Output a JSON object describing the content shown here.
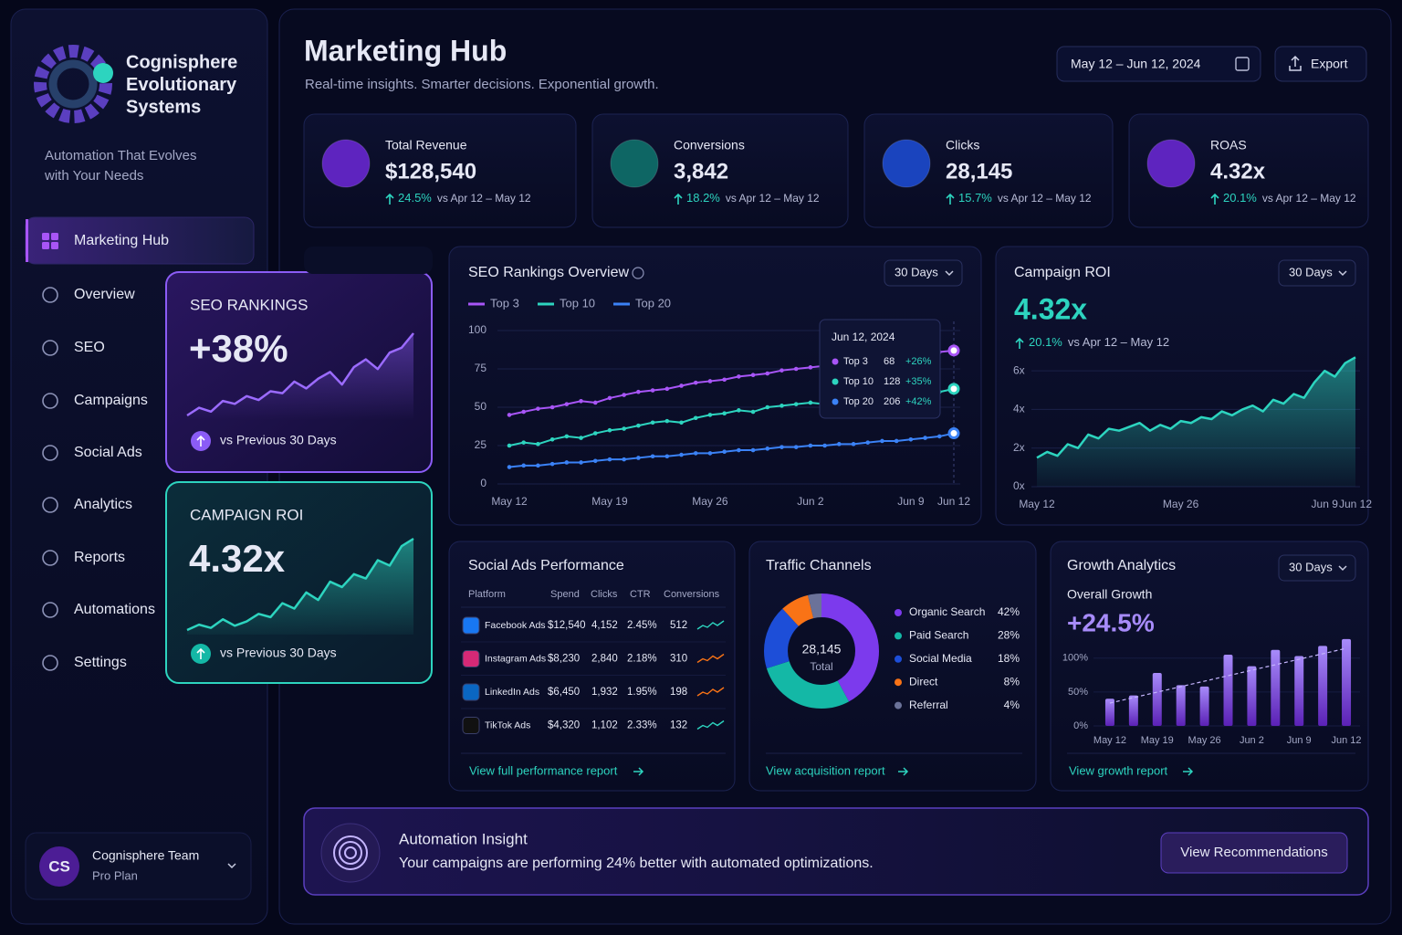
{
  "brand": {
    "name_lines": [
      "Cognisphere",
      "Evolutionary",
      "Systems"
    ],
    "tagline_lines": [
      "Automation That Evolves",
      "with Your Needs"
    ]
  },
  "nav": [
    "Marketing Hub",
    "Overview",
    "SEO",
    "Campaigns",
    "Social Ads",
    "Analytics",
    "Reports",
    "Automations",
    "Settings"
  ],
  "user": {
    "initials": "CS",
    "name": "Cognisphere Team",
    "plan": "Pro Plan"
  },
  "header": {
    "title": "Marketing Hub",
    "subtitle": "Real-time insights. Smarter decisions. Exponential growth.",
    "date_range": "May 12 – Jun 12, 2024",
    "export": "Export"
  },
  "kpis": [
    {
      "label": "Total Revenue",
      "value": "$128,540",
      "change": "24.5%",
      "compare": "vs Apr 12 – May 12"
    },
    {
      "label": "Conversions",
      "value": "3,842",
      "change": "18.2%",
      "compare": "vs Apr 12 – May 12"
    },
    {
      "label": "Clicks",
      "value": "28,145",
      "change": "15.7%",
      "compare": "vs Apr 12 – May 12"
    },
    {
      "label": "ROAS",
      "value": "4.32x",
      "change": "20.1%",
      "compare": "vs Apr 12 – May 12"
    }
  ],
  "highlight_cards": [
    {
      "title": "SEO RANKINGS",
      "value": "+38%",
      "footer": "vs Previous 30 Days",
      "sparkline": [
        10,
        18,
        14,
        25,
        22,
        30,
        26,
        35,
        33,
        45,
        38,
        48,
        55,
        42,
        60,
        68,
        58,
        75,
        80,
        95
      ]
    },
    {
      "title": "CAMPAIGN ROI",
      "value": "4.32x",
      "footer": "vs Previous 30 Days",
      "sparkline": [
        10,
        15,
        12,
        20,
        14,
        18,
        25,
        22,
        35,
        30,
        45,
        38,
        55,
        50,
        62,
        58,
        75,
        70,
        88,
        95
      ]
    }
  ],
  "seo_chart": {
    "type": "line",
    "title": "SEO Rankings Overview",
    "period": "30 Days",
    "categories": [
      "May 12",
      null,
      null,
      null,
      null,
      null,
      null,
      "May 19",
      null,
      null,
      null,
      null,
      null,
      null,
      "May 26",
      null,
      null,
      null,
      null,
      null,
      null,
      "Jun 2",
      null,
      null,
      null,
      null,
      null,
      null,
      "Jun 9",
      null,
      null,
      "Jun 12"
    ],
    "series": [
      {
        "name": "Top 3",
        "color": "#a855f7",
        "values": [
          45,
          47,
          49,
          50,
          52,
          54,
          53,
          56,
          58,
          60,
          61,
          62,
          64,
          66,
          67,
          68,
          70,
          71,
          72,
          74,
          75,
          76,
          77,
          78,
          79,
          80,
          81,
          82,
          83,
          84,
          86,
          87
        ]
      },
      {
        "name": "Top 10",
        "color": "#2dd4bf",
        "values": [
          25,
          27,
          26,
          29,
          31,
          30,
          33,
          35,
          36,
          38,
          40,
          41,
          40,
          43,
          45,
          46,
          48,
          47,
          50,
          51,
          52,
          53,
          52,
          54,
          55,
          56,
          57,
          58,
          58,
          59,
          60,
          62
        ]
      },
      {
        "name": "Top 20",
        "color": "#3b82f6",
        "values": [
          11,
          12,
          12,
          13,
          14,
          14,
          15,
          16,
          16,
          17,
          18,
          18,
          19,
          20,
          20,
          21,
          22,
          22,
          23,
          24,
          24,
          25,
          25,
          26,
          26,
          27,
          28,
          28,
          29,
          30,
          31,
          33
        ]
      }
    ],
    "ylim": [
      0,
      100
    ],
    "yticks": [
      0,
      25,
      50,
      75,
      100
    ],
    "grid": true,
    "tooltip": {
      "date": "Jun 12, 2024",
      "rows": [
        {
          "name": "Top 3",
          "value": "68",
          "change": "+26%"
        },
        {
          "name": "Top 10",
          "value": "128",
          "change": "+35%"
        },
        {
          "name": "Top 20",
          "value": "206",
          "change": "+42%"
        }
      ]
    }
  },
  "roi_chart": {
    "type": "area",
    "title": "Campaign ROI",
    "period": "30 Days",
    "value": "4.32x",
    "change": "20.1%",
    "compare": "vs Apr 12 – May 12",
    "color": "#2dd4bf",
    "categories": [
      "May 12",
      null,
      null,
      null,
      null,
      null,
      null,
      null,
      null,
      null,
      null,
      null,
      null,
      null,
      "May 26",
      null,
      null,
      null,
      null,
      null,
      null,
      null,
      null,
      null,
      null,
      null,
      null,
      null,
      "Jun 9",
      null,
      null,
      "Jun 12"
    ],
    "values": [
      1.5,
      1.8,
      1.6,
      2.2,
      2.0,
      2.7,
      2.5,
      3.0,
      2.9,
      3.1,
      3.3,
      2.9,
      3.2,
      3.0,
      3.4,
      3.3,
      3.6,
      3.5,
      3.9,
      3.7,
      4.0,
      4.2,
      3.9,
      4.5,
      4.3,
      4.8,
      4.6,
      5.4,
      6.0,
      5.7,
      6.4,
      6.7
    ],
    "ylim": [
      0,
      7
    ],
    "yticks": [
      {
        "value": 0,
        "label": "0x"
      },
      {
        "value": 2,
        "label": "2x"
      },
      {
        "value": 4,
        "label": "4x"
      },
      {
        "value": 6,
        "label": "6x"
      }
    ],
    "grid": true
  },
  "social_ads": {
    "title": "Social Ads Performance",
    "columns": [
      "Platform",
      "Spend",
      "Clicks",
      "CTR",
      "Conversions"
    ],
    "rows": [
      [
        "Facebook Ads",
        "$12,540",
        "4,152",
        "2.45%",
        "512"
      ],
      [
        "Instagram Ads",
        "$8,230",
        "2,840",
        "2.18%",
        "310"
      ],
      [
        "LinkedIn Ads",
        "$6,450",
        "1,932",
        "1.95%",
        "198"
      ],
      [
        "TikTok Ads",
        "$4,320",
        "1,102",
        "2.33%",
        "132"
      ]
    ],
    "link": "View full performance report"
  },
  "traffic": {
    "type": "donut",
    "title": "Traffic Channels",
    "center_value": "28,145",
    "center_label": "Total",
    "categories": [
      "Organic Search",
      "Paid Search",
      "Social Media",
      "Direct",
      "Referral"
    ],
    "values": [
      42,
      28,
      18,
      8,
      4
    ],
    "value_labels": [
      "42%",
      "28%",
      "18%",
      "8%",
      "4%"
    ],
    "colors": [
      "#7c3aed",
      "#14b8a6",
      "#1d4ed8",
      "#f97316",
      "#6b7299"
    ],
    "link": "View acquisition report"
  },
  "growth": {
    "type": "bar",
    "title": "Growth Analytics",
    "period": "30 Days",
    "subtitle": "Overall Growth",
    "value": "+24.5%",
    "color": "#8b5cf6",
    "categories": [
      "May 12",
      null,
      "May 19",
      null,
      "May 26",
      null,
      "Jun 2",
      null,
      "Jun 9",
      null,
      "Jun 12"
    ],
    "values": [
      40,
      45,
      78,
      60,
      58,
      105,
      88,
      112,
      103,
      118,
      128
    ],
    "ylim": [
      0,
      140
    ],
    "yticks": [
      {
        "value": 0,
        "label": "0%"
      },
      {
        "value": 50,
        "label": "50%"
      },
      {
        "value": 100,
        "label": "100%"
      }
    ],
    "link": "View growth report"
  },
  "insight": {
    "title": "Automation Insight",
    "text": "Your campaigns are performing 24% better with automated optimizations.",
    "button": "View Recommendations"
  }
}
